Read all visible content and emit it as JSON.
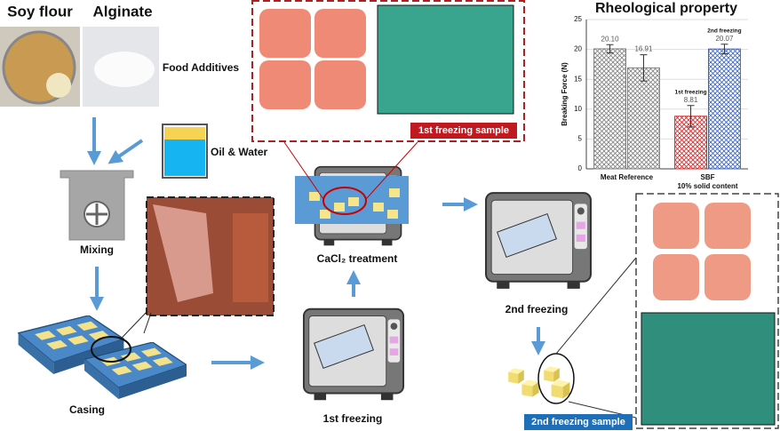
{
  "nodes": [
    {
      "label": "Soy flour"
    },
    {
      "label": "Alginate"
    },
    {
      "label": "Food Additives"
    },
    {
      "label": "Oil & Water"
    },
    {
      "label": "Mixing"
    },
    {
      "label": "Casing"
    },
    {
      "label": "1st freezing"
    },
    {
      "label": "CaCl₂ treatment"
    },
    {
      "label": "2nd freezing"
    }
  ],
  "samples": [
    "1st freezing sample",
    "2nd freezing sample"
  ],
  "chart_data": {
    "type": "bar",
    "title": "Rheological property",
    "y_label": "Breaking Force (N)",
    "ylim": [
      0,
      25
    ],
    "yticks": [
      0,
      5,
      10,
      15,
      20,
      25
    ],
    "groups": [
      {
        "label": "Meat Reference",
        "bars": [
          {
            "value": 20.1,
            "value_label": "20.10",
            "error": 0.7,
            "color": "#7f7f7f"
          },
          {
            "value": 16.91,
            "error": 2.2,
            "color": "#7f7f7f"
          }
        ]
      },
      {
        "label": "SBF",
        "sublabel": "10% solid content",
        "bars": [
          {
            "name": "1st freezing",
            "value": 8.81,
            "error": 1.8,
            "color": "#d62828"
          },
          {
            "name": "2nd freezing",
            "value": 20.07,
            "error": 0.8,
            "color": "#3b63c4"
          }
        ]
      }
    ]
  }
}
